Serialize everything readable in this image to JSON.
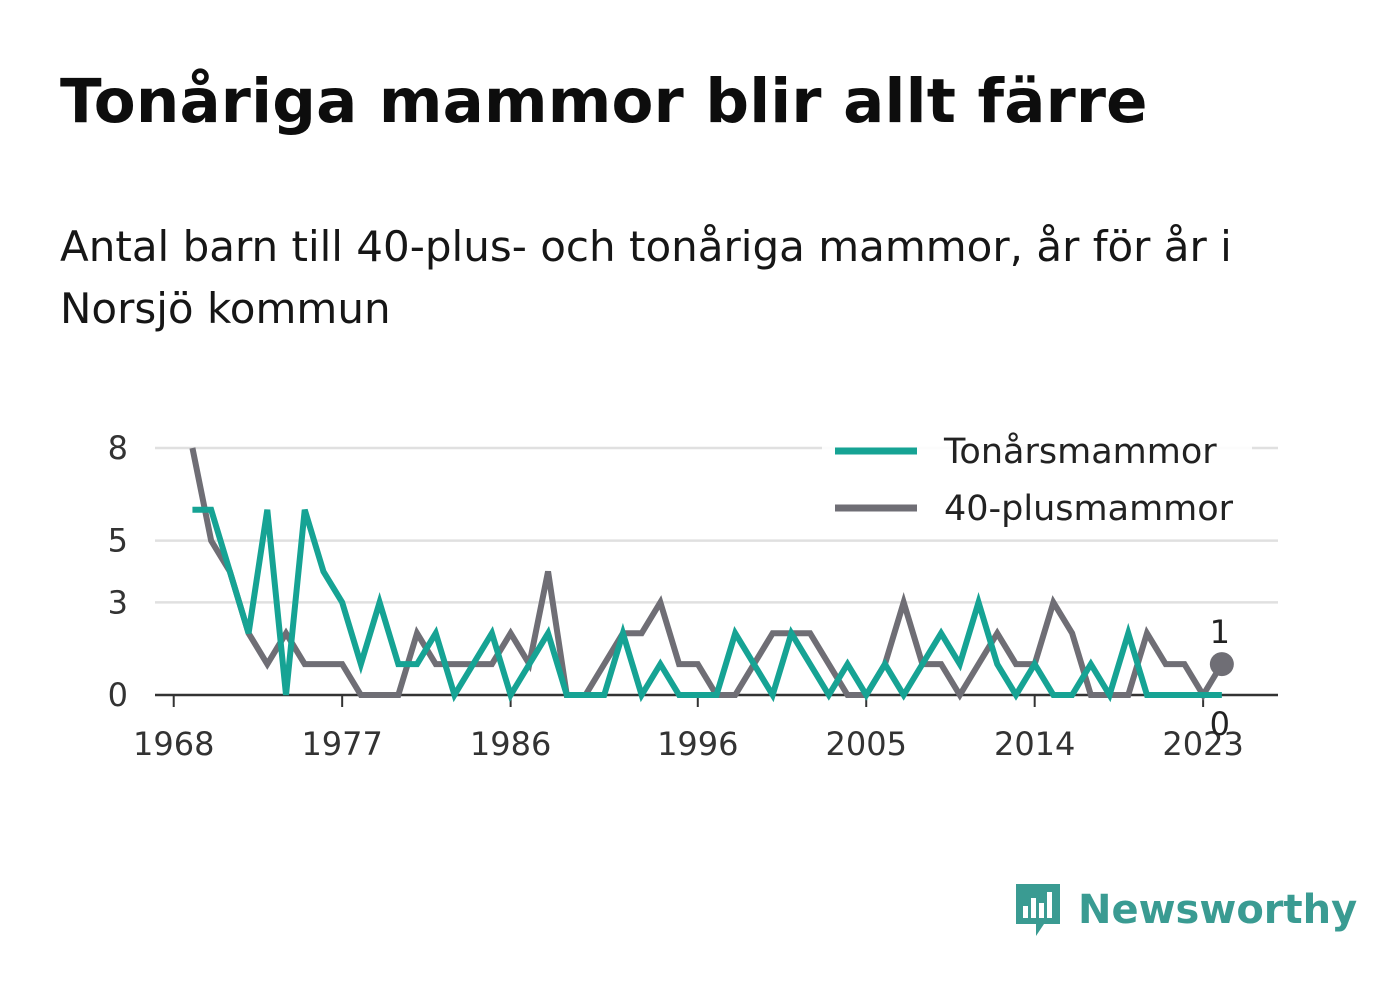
{
  "title": "Tonåriga mammor blir allt färre",
  "subtitle": "Antal barn till 40-plus- och tonåriga mammor, år för år i Norsjö kommun",
  "brand": {
    "name": "Newsworthy",
    "icon": "newsworthy-logo-icon"
  },
  "colors": {
    "teen": "#16a394",
    "forty": "#6f6e75",
    "grid": "#e0e0e0",
    "axis": "#333333"
  },
  "chart_data": {
    "type": "line",
    "title": "Tonåriga mammor blir allt färre",
    "subtitle": "Antal barn till 40-plus- och tonåriga mammor, år för år i Norsjö kommun",
    "xlabel": "",
    "ylabel": "",
    "x_ticks": [
      1968,
      1977,
      1986,
      1996,
      2005,
      2014,
      2023
    ],
    "y_ticks": [
      0,
      3,
      5,
      8
    ],
    "xlim": [
      1967,
      2027
    ],
    "ylim": [
      0,
      8
    ],
    "grid": true,
    "legend": "top-right",
    "x": [
      1969,
      1970,
      1971,
      1972,
      1973,
      1974,
      1975,
      1976,
      1977,
      1978,
      1979,
      1980,
      1981,
      1982,
      1983,
      1984,
      1985,
      1986,
      1987,
      1988,
      1989,
      1990,
      1991,
      1992,
      1993,
      1994,
      1995,
      1996,
      1997,
      1998,
      1999,
      2000,
      2001,
      2002,
      2003,
      2004,
      2005,
      2006,
      2007,
      2008,
      2009,
      2010,
      2011,
      2012,
      2013,
      2014,
      2015,
      2016,
      2017,
      2018,
      2019,
      2020,
      2021,
      2022,
      2023,
      2024
    ],
    "series": [
      {
        "name": "Tonårsmammor",
        "color": "#16a394",
        "values": [
          6,
          6,
          4,
          2,
          6,
          0,
          6,
          4,
          3,
          1,
          3,
          1,
          1,
          2,
          0,
          1,
          2,
          0,
          1,
          2,
          0,
          0,
          0,
          2,
          0,
          1,
          0,
          0,
          0,
          2,
          1,
          0,
          2,
          1,
          0,
          1,
          0,
          1,
          0,
          1,
          2,
          1,
          3,
          1,
          0,
          1,
          0,
          0,
          1,
          0,
          2,
          0,
          0,
          0,
          0,
          0
        ]
      },
      {
        "name": "40-plusmammor",
        "color": "#6f6e75",
        "values": [
          8,
          5,
          4,
          2,
          1,
          2,
          1,
          1,
          1,
          0,
          0,
          0,
          2,
          1,
          1,
          1,
          1,
          2,
          1,
          4,
          0,
          0,
          1,
          2,
          2,
          3,
          1,
          1,
          0,
          0,
          1,
          2,
          2,
          2,
          1,
          0,
          0,
          1,
          3,
          1,
          1,
          0,
          1,
          2,
          1,
          1,
          3,
          2,
          0,
          0,
          0,
          2,
          1,
          1,
          0,
          1
        ]
      }
    ],
    "end_labels": [
      {
        "series": "40-plusmammor",
        "x": 2024,
        "value": "1"
      },
      {
        "series": "Tonårsmammor",
        "x": 2024,
        "value": "0"
      }
    ]
  }
}
